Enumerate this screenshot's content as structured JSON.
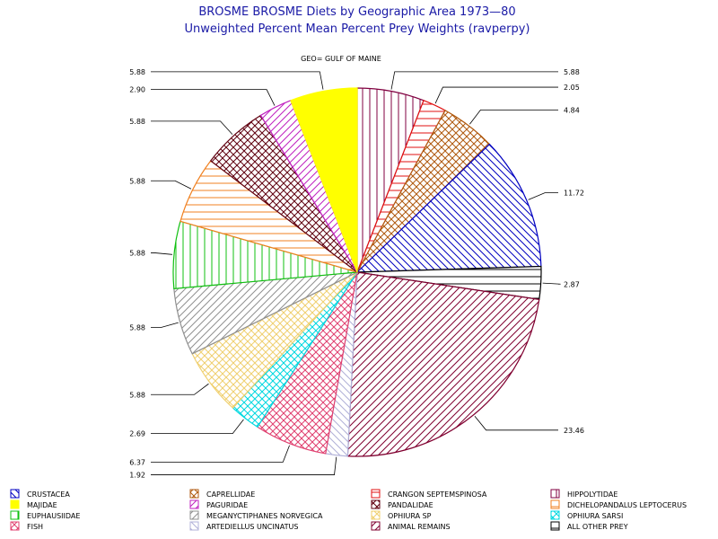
{
  "chart_data": {
    "type": "pie",
    "title": "BROSME BROSME Diets by Geographic Area 1973—80",
    "subtitle": "Unweighted Percent Mean Percent Prey  Weights (ravperpy)",
    "panel_label": "GEO= GULF OF MAINE",
    "slices": [
      {
        "name": "HIPPOLYTIDAE",
        "value": 5.88,
        "label": "5.88",
        "color": "#800040",
        "pattern": "vertical"
      },
      {
        "name": "CRANGON SEPTEMSPINOSA",
        "value": 2.05,
        "label": "2.05",
        "color": "#e01010",
        "pattern": "horizontal"
      },
      {
        "name": "CAPRELLIDAE",
        "value": 4.84,
        "label": "4.84",
        "color": "#b05a10",
        "pattern": "crosshatch"
      },
      {
        "name": "CRUSTACEA",
        "value": 11.72,
        "label": "11.72",
        "color": "#0000c0",
        "pattern": "diag-down"
      },
      {
        "name": "ALL OTHER PREY",
        "value": 2.87,
        "label": "2.87",
        "color": "#000000",
        "pattern": "horizontal"
      },
      {
        "name": "ANIMAL REMAINS",
        "value": 23.46,
        "label": "23.46",
        "color": "#800030",
        "pattern": "diag-up"
      },
      {
        "name": "ARTEDIELLUS UNCINATUS",
        "value": 1.92,
        "label": "1.92",
        "color": "#b0b0d8",
        "pattern": "diag-down"
      },
      {
        "name": "FISH",
        "value": 6.37,
        "label": "6.37",
        "color": "#e04070",
        "pattern": "crosshatch"
      },
      {
        "name": "OPHIURA SARSI",
        "value": 2.69,
        "label": "2.69",
        "color": "#00d8e0",
        "pattern": "crosshatch"
      },
      {
        "name": "OPHIURA SP",
        "value": 5.88,
        "label": "5.88",
        "color": "#f0d070",
        "pattern": "crosshatch"
      },
      {
        "name": "MEGANYCTIPHANES NORVEGICA",
        "value": 5.88,
        "label": "5.88",
        "color": "#909090",
        "pattern": "diag-up"
      },
      {
        "name": "EUPHAUSIIDAE",
        "value": 5.88,
        "label": "5.88",
        "color": "#10c010",
        "pattern": "vertical"
      },
      {
        "name": "DICHELOPANDALUS LEPTOCERUS",
        "value": 5.88,
        "label": "5.88",
        "color": "#f08020",
        "pattern": "horizontal"
      },
      {
        "name": "PANDALIDAE",
        "value": 5.88,
        "label": "5.88",
        "color": "#600010",
        "pattern": "crosshatch"
      },
      {
        "name": "PAGURIDAE",
        "value": 2.9,
        "label": "2.90",
        "color": "#c020c0",
        "pattern": "diag-up"
      },
      {
        "name": "MAJIDAE",
        "value": 5.88,
        "label": "5.88",
        "color": "#ffff00",
        "pattern": "solid"
      }
    ],
    "legend": [
      {
        "name": "CRUSTACEA",
        "color": "#0000c0",
        "pattern": "diag-down"
      },
      {
        "name": "CAPRELLIDAE",
        "color": "#b05a10",
        "pattern": "crosshatch"
      },
      {
        "name": "CRANGON SEPTEMSPINOSA",
        "color": "#e01010",
        "pattern": "horizontal"
      },
      {
        "name": "HIPPOLYTIDAE",
        "color": "#800040",
        "pattern": "vertical"
      },
      {
        "name": "MAJIDAE",
        "color": "#ffff00",
        "pattern": "solid"
      },
      {
        "name": "PAGURIDAE",
        "color": "#c020c0",
        "pattern": "diag-up"
      },
      {
        "name": "PANDALIDAE",
        "color": "#600010",
        "pattern": "crosshatch"
      },
      {
        "name": "DICHELOPANDALUS LEPTOCERUS",
        "color": "#f08020",
        "pattern": "horizontal"
      },
      {
        "name": "EUPHAUSIIDAE",
        "color": "#10c010",
        "pattern": "vertical"
      },
      {
        "name": "MEGANYCTIPHANES NORVEGICA",
        "color": "#909090",
        "pattern": "diag-up"
      },
      {
        "name": "OPHIURA SP",
        "color": "#f0d070",
        "pattern": "crosshatch"
      },
      {
        "name": "OPHIURA SARSI",
        "color": "#00d8e0",
        "pattern": "crosshatch"
      },
      {
        "name": "FISH",
        "color": "#e04070",
        "pattern": "crosshatch"
      },
      {
        "name": "ARTEDIELLUS UNCINATUS",
        "color": "#b0b0d8",
        "pattern": "diag-down"
      },
      {
        "name": "ANIMAL REMAINS",
        "color": "#800030",
        "pattern": "diag-up"
      },
      {
        "name": "ALL OTHER PREY",
        "color": "#000000",
        "pattern": "horizontal"
      }
    ],
    "legend_placement": "bottom"
  }
}
